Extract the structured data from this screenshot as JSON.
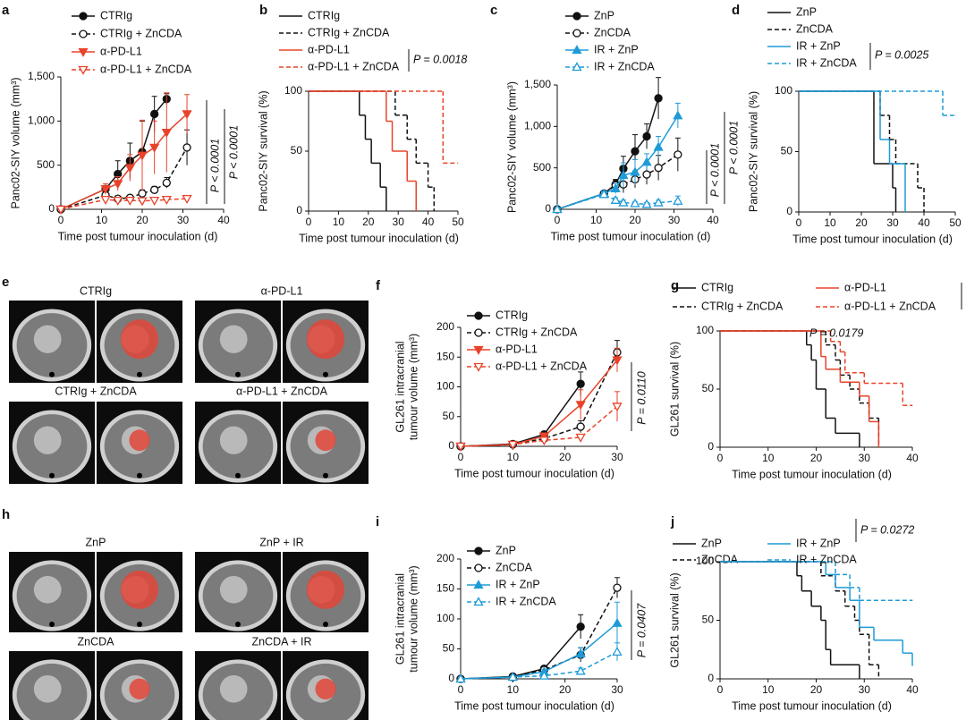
{
  "chart_data": [
    {
      "panel": "a",
      "type": "line",
      "ylabel": "Panc02-SIY volume (mm³)",
      "xlabel": "Time post tumour inoculation (d)",
      "x": [
        0,
        11,
        14,
        17,
        20,
        23,
        26,
        31
      ],
      "xlim": [
        0,
        40
      ],
      "xticks": [
        0,
        10,
        20,
        30,
        40
      ],
      "ylim": [
        0,
        1500
      ],
      "yticks": [
        0,
        500,
        {
          "value": 1000,
          "label": "1,000"
        },
        {
          "value": 1500,
          "label": "1,500"
        }
      ],
      "series": [
        {
          "name": "CTRIg",
          "color": "#111111",
          "marker": "circle",
          "filled": true,
          "dashed": false,
          "values": [
            0,
            230,
            400,
            550,
            650,
            1080,
            1250,
            null
          ],
          "errors": [
            0,
            40,
            150,
            200,
            350,
            200,
            60,
            null
          ]
        },
        {
          "name": "CTRIg + ZnCDA",
          "color": "#111111",
          "marker": "circle",
          "filled": false,
          "dashed": true,
          "values": [
            0,
            160,
            120,
            130,
            180,
            220,
            300,
            700
          ],
          "errors": [
            0,
            40,
            30,
            30,
            40,
            40,
            60,
            200
          ]
        },
        {
          "name": "α-PD-L1",
          "color": "#e8432a",
          "marker": "triangle-down",
          "filled": true,
          "dashed": false,
          "values": [
            0,
            230,
            290,
            470,
            610,
            700,
            870,
            1080
          ],
          "errors": [
            0,
            60,
            80,
            150,
            400,
            300,
            450,
            220
          ]
        },
        {
          "name": "α-PD-L1 + ZnCDA",
          "color": "#e8432a",
          "marker": "triangle-down",
          "filled": false,
          "dashed": true,
          "values": [
            0,
            110,
            100,
            100,
            95,
            100,
            110,
            120
          ],
          "errors": [
            0,
            30,
            20,
            20,
            20,
            20,
            20,
            30
          ]
        }
      ],
      "annotations": [
        "P < 0.0001",
        "P < 0.0001"
      ]
    },
    {
      "panel": "b",
      "type": "step",
      "ylabel": "Panc02-SIY survival (%)",
      "xlabel": "Time post tumour inoculation (d)",
      "xlim": [
        0,
        50
      ],
      "xticks": [
        0,
        10,
        20,
        30,
        40,
        50
      ],
      "ylim": [
        0,
        100
      ],
      "yticks": [
        0,
        50,
        100
      ],
      "series": [
        {
          "name": "CTRIg",
          "color": "#111111",
          "dashed": false,
          "x": [
            0,
            17,
            19,
            21,
            24,
            26
          ],
          "values": [
            100,
            80,
            60,
            40,
            20,
            0
          ]
        },
        {
          "name": "CTRIg + ZnCDA",
          "color": "#111111",
          "dashed": true,
          "x": [
            0,
            29,
            33,
            36,
            40,
            42
          ],
          "values": [
            100,
            80,
            60,
            40,
            20,
            0
          ]
        },
        {
          "name": "α-PD-L1",
          "color": "#e8432a",
          "dashed": false,
          "x": [
            0,
            26,
            28,
            33,
            36
          ],
          "values": [
            100,
            75,
            50,
            25,
            0
          ]
        },
        {
          "name": "α-PD-L1 + ZnCDA",
          "color": "#e8432a",
          "dashed": true,
          "x": [
            0,
            45,
            50
          ],
          "values": [
            100,
            40,
            40
          ]
        }
      ],
      "annotations": [
        "P = 0.0018"
      ]
    },
    {
      "panel": "c",
      "type": "line",
      "ylabel": "Panc02-SIY volume (mm³)",
      "xlabel": "Time post tumour inoculation (d)",
      "x": [
        0,
        12,
        15,
        17,
        20,
        23,
        26,
        31
      ],
      "xlim": [
        0,
        40
      ],
      "xticks": [
        0,
        10,
        20,
        30,
        40
      ],
      "ylim": [
        0,
        1500
      ],
      "yticks": [
        0,
        500,
        {
          "value": 1000,
          "label": "1,000"
        },
        {
          "value": 1500,
          "label": "1,500"
        }
      ],
      "series": [
        {
          "name": "ZnP",
          "color": "#111111",
          "marker": "circle",
          "filled": true,
          "dashed": false,
          "values": [
            0,
            190,
            300,
            490,
            700,
            880,
            1340,
            null
          ],
          "errors": [
            0,
            30,
            60,
            150,
            200,
            150,
            250,
            null
          ]
        },
        {
          "name": "ZnCDA",
          "color": "#111111",
          "marker": "circle",
          "filled": false,
          "dashed": true,
          "values": [
            0,
            190,
            290,
            300,
            360,
            420,
            500,
            660
          ],
          "errors": [
            0,
            30,
            60,
            100,
            100,
            120,
            150,
            200
          ]
        },
        {
          "name": "IR + ZnP",
          "color": "#1e9bd7",
          "marker": "triangle-up",
          "filled": true,
          "dashed": false,
          "values": [
            0,
            190,
            250,
            410,
            450,
            570,
            750,
            1130
          ],
          "errors": [
            0,
            30,
            60,
            150,
            150,
            100,
            130,
            150
          ]
        },
        {
          "name": "IR + ZnCDA",
          "color": "#1e9bd7",
          "marker": "triangle-up",
          "filled": false,
          "dashed": true,
          "values": [
            0,
            180,
            110,
            80,
            70,
            60,
            80,
            100
          ],
          "errors": [
            0,
            30,
            30,
            30,
            20,
            20,
            30,
            60
          ]
        }
      ],
      "annotations": [
        "P < 0.0001",
        "P < 0.0001"
      ]
    },
    {
      "panel": "d",
      "type": "step",
      "ylabel": "Panc02-SIY survival (%)",
      "xlabel": "Time post tumour inoculation (d)",
      "xlim": [
        0,
        50
      ],
      "xticks": [
        0,
        10,
        20,
        30,
        40,
        50
      ],
      "ylim": [
        0,
        100
      ],
      "yticks": [
        0,
        50,
        100
      ],
      "series": [
        {
          "name": "ZnP",
          "color": "#111111",
          "dashed": false,
          "x": [
            0,
            24,
            30,
            31
          ],
          "values": [
            100,
            40,
            20,
            0
          ]
        },
        {
          "name": "ZnCDA",
          "color": "#111111",
          "dashed": true,
          "x": [
            0,
            26,
            29,
            31,
            38,
            40
          ],
          "values": [
            100,
            80,
            60,
            40,
            20,
            0
          ]
        },
        {
          "name": "IR + ZnP",
          "color": "#1e9bd7",
          "dashed": false,
          "x": [
            0,
            26,
            29,
            34
          ],
          "values": [
            100,
            60,
            40,
            0
          ]
        },
        {
          "name": "IR + ZnCDA",
          "color": "#1e9bd7",
          "dashed": true,
          "x": [
            0,
            46,
            50
          ],
          "values": [
            100,
            80,
            80
          ]
        }
      ],
      "annotations": [
        "P = 0.0025"
      ]
    },
    {
      "panel": "f",
      "type": "line",
      "ylabel": [
        "GL261 intracranial",
        "tumour volume (mm³)"
      ],
      "xlabel": "Time post tumour inoculation (d)",
      "x": [
        0,
        10,
        16,
        23,
        30
      ],
      "xlim": [
        0,
        30
      ],
      "xticks": [
        0,
        10,
        20,
        30
      ],
      "ylim": [
        0,
        200
      ],
      "yticks": [
        0,
        50,
        100,
        150,
        200
      ],
      "series": [
        {
          "name": "CTRIg",
          "color": "#111111",
          "marker": "circle",
          "filled": true,
          "dashed": false,
          "values": [
            0,
            4,
            20,
            105,
            null
          ],
          "errors": [
            0,
            2,
            5,
            20,
            null
          ]
        },
        {
          "name": "CTRIg + ZnCDA",
          "color": "#111111",
          "marker": "circle",
          "filled": false,
          "dashed": true,
          "values": [
            0,
            3,
            13,
            33,
            158
          ],
          "errors": [
            0,
            2,
            5,
            10,
            20
          ]
        },
        {
          "name": "α-PD-L1",
          "color": "#e8432a",
          "marker": "triangle-down",
          "filled": true,
          "dashed": false,
          "values": [
            0,
            3,
            17,
            70,
            145
          ],
          "errors": [
            0,
            2,
            5,
            25,
            20
          ]
        },
        {
          "name": "α-PD-L1 + ZnCDA",
          "color": "#e8432a",
          "marker": "triangle-down",
          "filled": false,
          "dashed": true,
          "values": [
            0,
            3,
            10,
            15,
            67
          ],
          "errors": [
            0,
            2,
            3,
            5,
            25
          ]
        }
      ],
      "annotations": [
        "P = 0.0110"
      ]
    },
    {
      "panel": "g",
      "type": "step",
      "ylabel": "GL261 survival (%)",
      "xlabel": "Time post tumour inoculation (d)",
      "xlim": [
        0,
        40
      ],
      "xticks": [
        0,
        10,
        20,
        30,
        40
      ],
      "ylim": [
        0,
        100
      ],
      "yticks": [
        0,
        50,
        100
      ],
      "series": [
        {
          "name": "CTRIg",
          "color": "#111111",
          "dashed": false,
          "x": [
            0,
            18,
            19,
            20,
            22,
            24,
            29
          ],
          "values": [
            100,
            88,
            75,
            50,
            25,
            12,
            0
          ]
        },
        {
          "name": "CTRIg + ZnCDA",
          "color": "#111111",
          "dashed": true,
          "x": [
            0,
            22,
            24,
            25,
            27,
            29,
            31,
            33
          ],
          "values": [
            100,
            88,
            75,
            62,
            50,
            38,
            25,
            0
          ]
        },
        {
          "name": "α-PD-L1",
          "color": "#e8432a",
          "dashed": false,
          "x": [
            0,
            21,
            22,
            25,
            29,
            31,
            33
          ],
          "values": [
            100,
            78,
            67,
            56,
            44,
            22,
            0
          ]
        },
        {
          "name": "α-PD-L1 + ZnCDA",
          "color": "#e8432a",
          "dashed": true,
          "x": [
            0,
            23,
            25,
            26,
            30,
            38,
            40
          ],
          "values": [
            100,
            91,
            82,
            64,
            55,
            36,
            36
          ]
        }
      ],
      "annotations": [
        "P = 0.0179"
      ]
    },
    {
      "panel": "i",
      "type": "line",
      "ylabel": [
        "GL261 intracranial",
        "tumour volume (mm³)"
      ],
      "xlabel": "Time post tumour inoculation (d)",
      "x": [
        0,
        10,
        16,
        23,
        30
      ],
      "xlim": [
        0,
        30
      ],
      "xticks": [
        0,
        10,
        20,
        30
      ],
      "ylim": [
        0,
        200
      ],
      "yticks": [
        0,
        50,
        100,
        150,
        200
      ],
      "series": [
        {
          "name": "ZnP",
          "color": "#111111",
          "marker": "circle",
          "filled": true,
          "dashed": false,
          "values": [
            0,
            4,
            17,
            87,
            null
          ],
          "errors": [
            0,
            2,
            5,
            20,
            null
          ]
        },
        {
          "name": "ZnCDA",
          "color": "#111111",
          "marker": "circle",
          "filled": false,
          "dashed": true,
          "values": [
            0,
            3,
            15,
            40,
            152
          ],
          "errors": [
            0,
            2,
            5,
            12,
            17
          ]
        },
        {
          "name": "IR + ZnP",
          "color": "#1e9bd7",
          "marker": "triangle-up",
          "filled": true,
          "dashed": false,
          "values": [
            0,
            3,
            12,
            42,
            93
          ],
          "errors": [
            0,
            2,
            4,
            10,
            35
          ]
        },
        {
          "name": "IR + ZnCDA",
          "color": "#1e9bd7",
          "marker": "triangle-up",
          "filled": false,
          "dashed": true,
          "values": [
            0,
            3,
            5,
            13,
            45
          ],
          "errors": [
            0,
            2,
            2,
            5,
            15
          ]
        }
      ],
      "annotations": [
        "P = 0.0407"
      ]
    },
    {
      "panel": "j",
      "type": "step",
      "ylabel": "GL261 survival (%)",
      "xlabel": "Time post tumour inoculation (d)",
      "xlim": [
        0,
        40
      ],
      "xticks": [
        0,
        10,
        20,
        30,
        40
      ],
      "ylim": [
        0,
        100
      ],
      "yticks": [
        0,
        50,
        100
      ],
      "series": [
        {
          "name": "ZnP",
          "color": "#111111",
          "dashed": false,
          "x": [
            0,
            16,
            17,
            19,
            21,
            22,
            23,
            29
          ],
          "values": [
            100,
            88,
            75,
            62,
            50,
            25,
            12,
            0
          ]
        },
        {
          "name": "ZnCDA",
          "color": "#111111",
          "dashed": true,
          "x": [
            0,
            21,
            24,
            26,
            28,
            29,
            31,
            33
          ],
          "values": [
            100,
            88,
            75,
            62,
            50,
            38,
            12,
            0
          ]
        },
        {
          "name": "IR + ZnP",
          "color": "#1e9bd7",
          "dashed": false,
          "x": [
            0,
            22,
            24,
            27,
            29,
            32,
            38,
            40
          ],
          "values": [
            100,
            89,
            78,
            67,
            44,
            33,
            22,
            11
          ]
        },
        {
          "name": "IR + ZnCDA",
          "color": "#1e9bd7",
          "dashed": true,
          "x": [
            0,
            24,
            27,
            29,
            40
          ],
          "values": [
            100,
            89,
            78,
            67,
            67
          ]
        }
      ],
      "annotations": [
        "P = 0.0272"
      ]
    }
  ],
  "image_panels": [
    {
      "panel": "e",
      "labels": [
        "CTRIg",
        "α-PD-L1",
        "CTRIg + ZnCDA",
        "α-PD-L1 + ZnCDA"
      ]
    },
    {
      "panel": "h",
      "labels": [
        "ZnP",
        "ZnP + IR",
        "ZnCDA",
        "ZnCDA + IR"
      ]
    }
  ]
}
